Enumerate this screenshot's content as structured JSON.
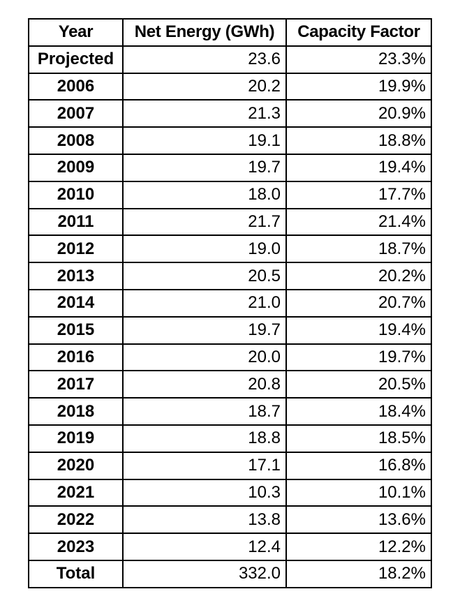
{
  "colors": {
    "background": "#ffffff",
    "border": "#000000",
    "text": "#000000"
  },
  "table": {
    "columns": [
      "Year",
      "Net Energy (GWh)",
      "Capacity Factor"
    ],
    "rows": [
      {
        "year": "Projected",
        "net_energy": "23.6",
        "capacity_factor": "23.3%"
      },
      {
        "year": "2006",
        "net_energy": "20.2",
        "capacity_factor": "19.9%"
      },
      {
        "year": "2007",
        "net_energy": "21.3",
        "capacity_factor": "20.9%"
      },
      {
        "year": "2008",
        "net_energy": "19.1",
        "capacity_factor": "18.8%"
      },
      {
        "year": "2009",
        "net_energy": "19.7",
        "capacity_factor": "19.4%"
      },
      {
        "year": "2010",
        "net_energy": "18.0",
        "capacity_factor": "17.7%"
      },
      {
        "year": "2011",
        "net_energy": "21.7",
        "capacity_factor": "21.4%"
      },
      {
        "year": "2012",
        "net_energy": "19.0",
        "capacity_factor": "18.7%"
      },
      {
        "year": "2013",
        "net_energy": "20.5",
        "capacity_factor": "20.2%"
      },
      {
        "year": "2014",
        "net_energy": "21.0",
        "capacity_factor": "20.7%"
      },
      {
        "year": "2015",
        "net_energy": "19.7",
        "capacity_factor": "19.4%"
      },
      {
        "year": "2016",
        "net_energy": "20.0",
        "capacity_factor": "19.7%"
      },
      {
        "year": "2017",
        "net_energy": "20.8",
        "capacity_factor": "20.5%"
      },
      {
        "year": "2018",
        "net_energy": "18.7",
        "capacity_factor": "18.4%"
      },
      {
        "year": "2019",
        "net_energy": "18.8",
        "capacity_factor": "18.5%"
      },
      {
        "year": "2020",
        "net_energy": "17.1",
        "capacity_factor": "16.8%"
      },
      {
        "year": "2021",
        "net_energy": "10.3",
        "capacity_factor": "10.1%"
      },
      {
        "year": "2022",
        "net_energy": "13.8",
        "capacity_factor": "13.6%"
      },
      {
        "year": "2023",
        "net_energy": "12.4",
        "capacity_factor": "12.2%"
      },
      {
        "year": "Total",
        "net_energy": "332.0",
        "capacity_factor": "18.2%"
      }
    ]
  },
  "chart_data": {
    "type": "table",
    "title": "",
    "columns": [
      "Year",
      "Net Energy (GWh)",
      "Capacity Factor"
    ],
    "rows": [
      [
        "Projected",
        23.6,
        23.3
      ],
      [
        "2006",
        20.2,
        19.9
      ],
      [
        "2007",
        21.3,
        20.9
      ],
      [
        "2008",
        19.1,
        18.8
      ],
      [
        "2009",
        19.7,
        19.4
      ],
      [
        "2010",
        18.0,
        17.7
      ],
      [
        "2011",
        21.7,
        21.4
      ],
      [
        "2012",
        19.0,
        18.7
      ],
      [
        "2013",
        20.5,
        20.2
      ],
      [
        "2014",
        21.0,
        20.7
      ],
      [
        "2015",
        19.7,
        19.4
      ],
      [
        "2016",
        20.0,
        19.7
      ],
      [
        "2017",
        20.8,
        20.5
      ],
      [
        "2018",
        18.7,
        18.4
      ],
      [
        "2019",
        18.8,
        18.5
      ],
      [
        "2020",
        17.1,
        16.8
      ],
      [
        "2021",
        10.3,
        10.1
      ],
      [
        "2022",
        13.8,
        13.6
      ],
      [
        "2023",
        12.4,
        12.2
      ],
      [
        "Total",
        332.0,
        18.2
      ]
    ],
    "notes": "Capacity Factor values rendered with % suffix"
  }
}
